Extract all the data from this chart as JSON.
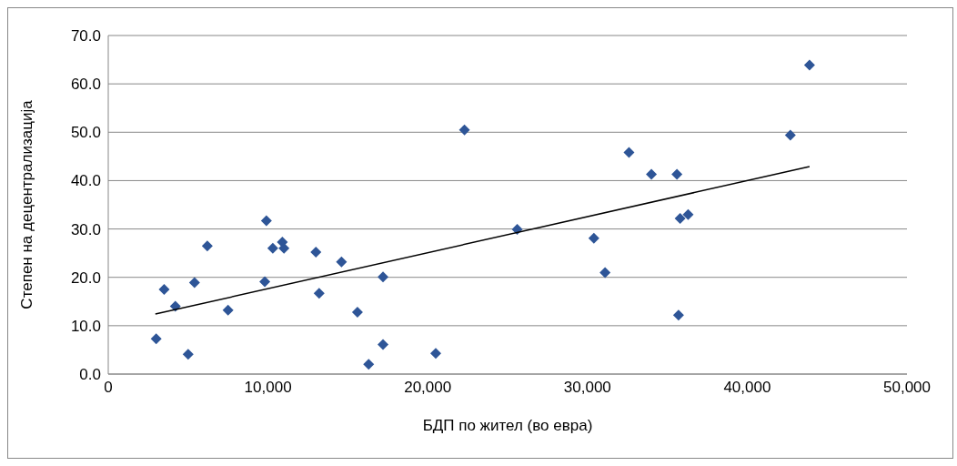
{
  "chart_data": {
    "type": "scatter",
    "xlabel": "БДП по жител (во евра)",
    "ylabel": "Степен на децентрализација",
    "xlim": [
      0,
      50000
    ],
    "xticks": [
      0,
      {
        "value": 10000,
        "label": "10,000"
      },
      {
        "value": 20000,
        "label": "20,000"
      },
      {
        "value": 30000,
        "label": "30,000"
      },
      {
        "value": 40000,
        "label": "40,000"
      },
      {
        "value": 50000,
        "label": "50,000"
      }
    ],
    "ylim": [
      0,
      70
    ],
    "yticks": [
      {
        "value": 0,
        "label": "0.0"
      },
      {
        "value": 10,
        "label": "10.0"
      },
      {
        "value": 20,
        "label": "20.0"
      },
      {
        "value": 30,
        "label": "30.0"
      },
      {
        "value": 40,
        "label": "40.0"
      },
      {
        "value": 50,
        "label": "50.0"
      },
      {
        "value": 60,
        "label": "60.0"
      },
      {
        "value": 70,
        "label": "70.0"
      }
    ],
    "grid": "y",
    "marker": "diamond",
    "series": [
      {
        "color": "#2e5597",
        "x": [
          3000,
          3500,
          4200,
          5000,
          5400,
          6200,
          7500,
          9800,
          9900,
          10300,
          10900,
          11000,
          13000,
          13200,
          14600,
          15600,
          16300,
          17200,
          17200,
          20500,
          22300,
          25600,
          30400,
          31100,
          32600,
          34000,
          35600,
          35800,
          35700,
          36300,
          42700,
          43900
        ],
        "values": [
          7.3,
          17.5,
          14.0,
          4.1,
          18.9,
          26.5,
          13.2,
          19.1,
          31.7,
          26.0,
          27.3,
          26.0,
          25.2,
          16.7,
          23.2,
          12.8,
          2.0,
          20.1,
          6.1,
          4.3,
          50.5,
          29.9,
          28.1,
          21.0,
          45.8,
          41.3,
          41.3,
          32.2,
          12.2,
          33.0,
          49.4,
          63.9
        ]
      },
      {
        "type": "line",
        "color": "#000000",
        "marker": "none",
        "x": [
          2950,
          43900
        ],
        "values": [
          12.4,
          42.9
        ]
      }
    ]
  }
}
